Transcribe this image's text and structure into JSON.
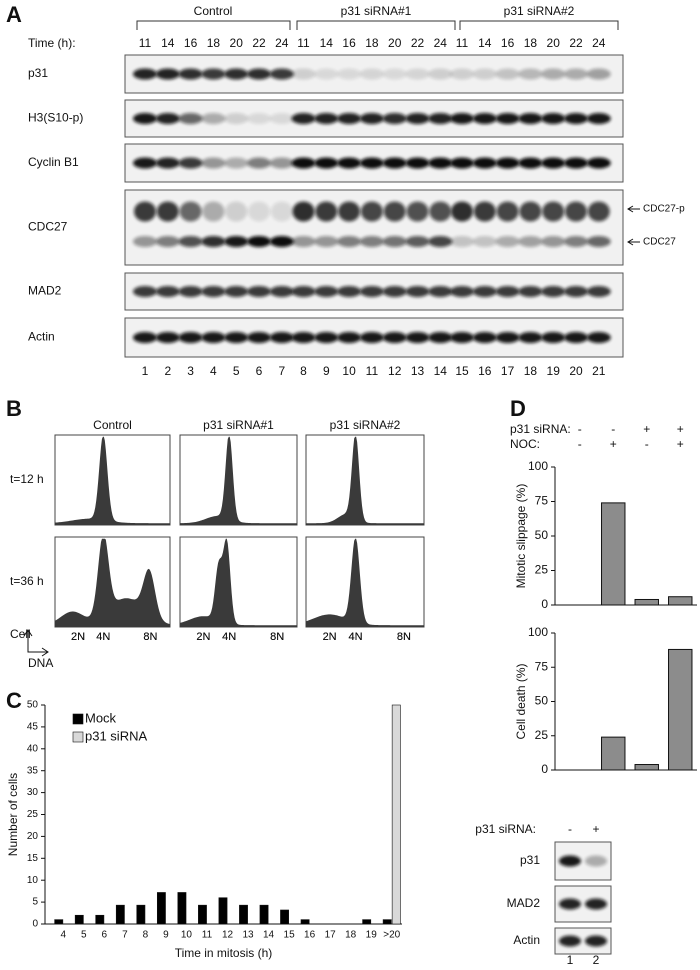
{
  "panel_labels": [
    "A",
    "B",
    "C",
    "D"
  ],
  "blot_a": {
    "groups": [
      "Control",
      "p31 siRNA#1",
      "p31 siRNA#2"
    ],
    "time_label": "Time (h):",
    "times": [
      11,
      14,
      16,
      18,
      20,
      22,
      24,
      11,
      14,
      16,
      18,
      20,
      22,
      24,
      11,
      14,
      16,
      18,
      20,
      22,
      24
    ],
    "lanes": [
      1,
      2,
      3,
      4,
      5,
      6,
      7,
      8,
      9,
      10,
      11,
      12,
      13,
      14,
      15,
      16,
      17,
      18,
      19,
      20,
      21
    ],
    "rows": [
      "p31",
      "H3(S10-p)",
      "Cyclin B1",
      "CDC27",
      "MAD2",
      "Actin"
    ],
    "arrows": [
      "CDC27-p",
      "CDC27"
    ]
  },
  "flow_b": {
    "columns": [
      "Control",
      "p31 siRNA#1",
      "p31 siRNA#2"
    ],
    "rows": [
      "t=12 h",
      "t=36 h"
    ],
    "x_labels": [
      "2N",
      "4N",
      "8N"
    ],
    "y_axis": "Cell",
    "x_axis": "DNA"
  },
  "header_d": [
    {
      "label": "p31 siRNA:",
      "signs": [
        "-",
        "-",
        "+",
        "+"
      ]
    },
    {
      "label": "NOC:",
      "signs": [
        "-",
        "+",
        "-",
        "+"
      ]
    }
  ],
  "blot_d": {
    "header": "p31 siRNA:",
    "signs": [
      "-",
      "+"
    ],
    "rows": [
      "p31",
      "MAD2",
      "Actin"
    ],
    "lanes": [
      1,
      2
    ]
  },
  "chart_data": [
    {
      "type": "bar",
      "xlabel": "Time in mitosis (h)",
      "ylabel": "Number of cells",
      "categories": [
        "4",
        "5",
        "6",
        "7",
        "8",
        "9",
        "10",
        "11",
        "12",
        "13",
        "14",
        "15",
        "16",
        "17",
        "18",
        "19",
        ">20"
      ],
      "series": [
        {
          "name": "Mock",
          "color": "#000000",
          "values": [
            1,
            2,
            2,
            4.3,
            4.3,
            7.2,
            7.2,
            4.3,
            6,
            4.3,
            4.3,
            3.2,
            1,
            0,
            0,
            1,
            1
          ]
        },
        {
          "name": "p31 siRNA",
          "color": "#d9d9d9",
          "values": [
            0,
            0,
            0,
            0,
            0,
            0,
            0,
            0,
            0,
            0,
            0,
            0,
            0,
            0,
            0,
            0,
            50
          ]
        }
      ],
      "ylim": [
        0,
        50
      ],
      "yticks": [
        0,
        5,
        10,
        15,
        20,
        25,
        30,
        35,
        40,
        45,
        50
      ],
      "legend": "top-left"
    },
    {
      "type": "bar",
      "ylabel": "Mitotic slippage (%)",
      "categories": [
        null,
        null,
        null,
        null
      ],
      "values": [
        0,
        74,
        4,
        6
      ],
      "color": "#8c8c8c",
      "ylim": [
        0,
        100
      ],
      "yticks": [
        0,
        25,
        50,
        75,
        100
      ]
    },
    {
      "type": "bar",
      "ylabel": "Cell death (%)",
      "categories": [
        null,
        null,
        null,
        null
      ],
      "values": [
        0,
        24,
        4,
        88
      ],
      "color": "#8c8c8c",
      "ylim": [
        0,
        100
      ],
      "yticks": [
        0,
        25,
        50,
        75,
        100
      ]
    }
  ]
}
